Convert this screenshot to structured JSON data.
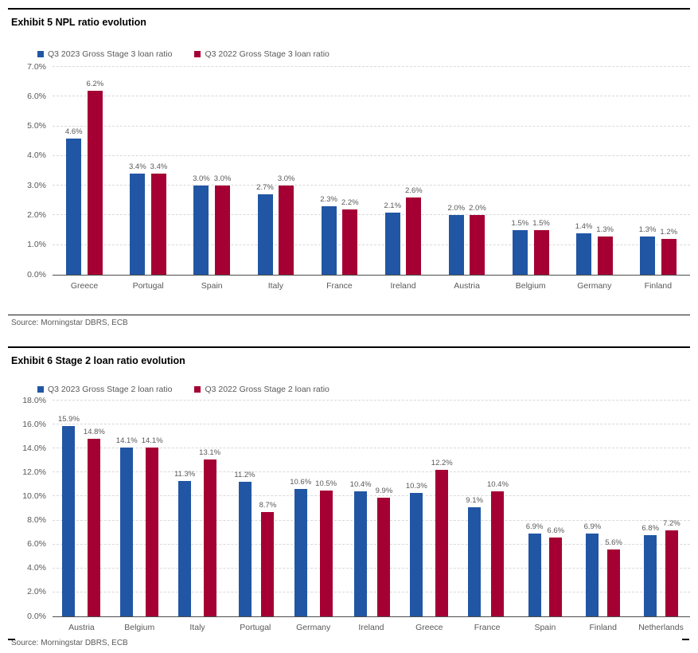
{
  "sources": {
    "exhibit5": "Source: Morningstar DBRS, ECB",
    "exhibit6": "Source: Morningstar DBRS, ECB"
  },
  "colors": {
    "series_2023_blue": "#2156a4",
    "series_2022_red": "#a50034",
    "gridline": "#d9d9d9",
    "axis_line": "#4d4d4d",
    "muted_text": "#595959",
    "title_text": "#000000"
  },
  "chart_data": [
    {
      "type": "bar",
      "title": "Exhibit 5 NPL ratio evolution",
      "categories": [
        "Greece",
        "Portugal",
        "Spain",
        "Italy",
        "France",
        "Ireland",
        "Austria",
        "Belgium",
        "Germany",
        "Finland"
      ],
      "series": [
        {
          "name": "Q3 2023 Gross Stage 3 loan ratio",
          "color": "#2156a4",
          "values": [
            4.6,
            3.4,
            3.0,
            2.7,
            2.3,
            2.1,
            2.0,
            1.5,
            1.4,
            1.3
          ]
        },
        {
          "name": "Q3 2022 Gross Stage 3 loan ratio",
          "color": "#a50034",
          "values": [
            6.2,
            3.4,
            3.0,
            3.0,
            2.2,
            2.6,
            2.0,
            1.5,
            1.3,
            1.2
          ]
        }
      ],
      "xlabel": "",
      "ylabel": "",
      "ylim": [
        0,
        7
      ],
      "ytick_step": 1,
      "ytick_format": "one-decimal-percent",
      "grid": "dashed-horizontal",
      "legend_position": "top-left",
      "value_labels": true
    },
    {
      "type": "bar",
      "title": "Exhibit 6 Stage 2 loan ratio evolution",
      "categories": [
        "Austria",
        "Belgium",
        "Italy",
        "Portugal",
        "Germany",
        "Ireland",
        "Greece",
        "France",
        "Spain",
        "Finland",
        "Netherlands"
      ],
      "series": [
        {
          "name": "Q3 2023 Gross Stage 2 loan ratio",
          "color": "#2156a4",
          "values": [
            15.9,
            14.1,
            11.3,
            11.2,
            10.6,
            10.4,
            10.3,
            9.1,
            6.9,
            6.9,
            6.8
          ]
        },
        {
          "name": "Q3 2022 Gross Stage 2 loan ratio",
          "color": "#a50034",
          "values": [
            14.8,
            14.1,
            13.1,
            8.7,
            10.5,
            9.9,
            12.2,
            10.4,
            6.6,
            5.6,
            7.2
          ]
        }
      ],
      "xlabel": "",
      "ylabel": "",
      "ylim": [
        0,
        18
      ],
      "ytick_step": 2,
      "ytick_format": "one-decimal-percent",
      "grid": "dashed-horizontal",
      "legend_position": "top-left",
      "value_labels": true
    }
  ]
}
